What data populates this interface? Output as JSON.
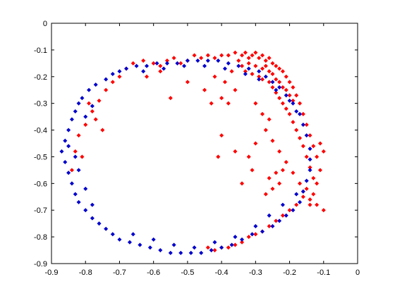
{
  "chart_data": {
    "type": "scatter",
    "title": "",
    "xlabel": "",
    "ylabel": "",
    "xlim": [
      -0.9,
      0
    ],
    "ylim": [
      -0.9,
      0
    ],
    "xticks": [
      "-0.9",
      "-0.8",
      "-0.7",
      "-0.6",
      "-0.5",
      "-0.4",
      "-0.3",
      "-0.2",
      "-0.1",
      "0"
    ],
    "yticks": [
      "0",
      "-0.1",
      "-0.2",
      "-0.3",
      "-0.4",
      "-0.5",
      "-0.6",
      "-0.7",
      "-0.8",
      "-0.9"
    ],
    "grid": false,
    "marker": "diamond",
    "series": [
      {
        "color": "#ff0000",
        "points": [
          [
            -0.66,
            -0.15
          ],
          [
            -0.63,
            -0.14
          ],
          [
            -0.6,
            -0.15
          ],
          [
            -0.58,
            -0.16
          ],
          [
            -0.56,
            -0.14
          ],
          [
            -0.54,
            -0.13
          ],
          [
            -0.52,
            -0.15
          ],
          [
            -0.5,
            -0.14
          ],
          [
            -0.48,
            -0.12
          ],
          [
            -0.46,
            -0.13
          ],
          [
            -0.44,
            -0.12
          ],
          [
            -0.42,
            -0.13
          ],
          [
            -0.4,
            -0.12
          ],
          [
            -0.38,
            -0.12
          ],
          [
            -0.36,
            -0.11
          ],
          [
            -0.34,
            -0.12
          ],
          [
            -0.33,
            -0.11
          ],
          [
            -0.32,
            -0.13
          ],
          [
            -0.31,
            -0.12
          ],
          [
            -0.3,
            -0.11
          ],
          [
            -0.29,
            -0.13
          ],
          [
            -0.28,
            -0.12
          ],
          [
            -0.27,
            -0.14
          ],
          [
            -0.26,
            -0.13
          ],
          [
            -0.25,
            -0.15
          ],
          [
            -0.24,
            -0.16
          ],
          [
            -0.23,
            -0.17
          ],
          [
            -0.22,
            -0.18
          ],
          [
            -0.21,
            -0.2
          ],
          [
            -0.2,
            -0.22
          ],
          [
            -0.19,
            -0.24
          ],
          [
            -0.18,
            -0.27
          ],
          [
            -0.17,
            -0.3
          ],
          [
            -0.16,
            -0.34
          ],
          [
            -0.15,
            -0.38
          ],
          [
            -0.14,
            -0.42
          ],
          [
            -0.13,
            -0.46
          ],
          [
            -0.12,
            -0.5
          ],
          [
            -0.11,
            -0.55
          ],
          [
            -0.12,
            -0.6
          ],
          [
            -0.13,
            -0.64
          ],
          [
            -0.14,
            -0.68
          ],
          [
            -0.35,
            -0.14
          ],
          [
            -0.34,
            -0.16
          ],
          [
            -0.32,
            -0.15
          ],
          [
            -0.3,
            -0.16
          ],
          [
            -0.28,
            -0.17
          ],
          [
            -0.27,
            -0.16
          ],
          [
            -0.26,
            -0.18
          ],
          [
            -0.25,
            -0.19
          ],
          [
            -0.24,
            -0.21
          ],
          [
            -0.23,
            -0.22
          ],
          [
            -0.22,
            -0.24
          ],
          [
            -0.21,
            -0.25
          ],
          [
            -0.2,
            -0.27
          ],
          [
            -0.19,
            -0.29
          ],
          [
            -0.33,
            -0.18
          ],
          [
            -0.31,
            -0.19
          ],
          [
            -0.29,
            -0.2
          ],
          [
            -0.28,
            -0.21
          ],
          [
            -0.26,
            -0.22
          ],
          [
            -0.25,
            -0.24
          ],
          [
            -0.24,
            -0.26
          ],
          [
            -0.23,
            -0.28
          ],
          [
            -0.22,
            -0.3
          ],
          [
            -0.21,
            -0.32
          ],
          [
            -0.2,
            -0.34
          ],
          [
            -0.19,
            -0.37
          ],
          [
            -0.18,
            -0.4
          ],
          [
            -0.17,
            -0.43
          ],
          [
            -0.16,
            -0.46
          ],
          [
            -0.15,
            -0.5
          ],
          [
            -0.14,
            -0.54
          ],
          [
            -0.13,
            -0.58
          ],
          [
            -0.15,
            -0.62
          ],
          [
            -0.16,
            -0.65
          ],
          [
            -0.18,
            -0.68
          ],
          [
            -0.2,
            -0.7
          ],
          [
            -0.22,
            -0.72
          ],
          [
            -0.24,
            -0.74
          ],
          [
            -0.26,
            -0.76
          ],
          [
            -0.28,
            -0.78
          ],
          [
            -0.3,
            -0.79
          ],
          [
            -0.32,
            -0.8
          ],
          [
            -0.34,
            -0.82
          ],
          [
            -0.36,
            -0.83
          ],
          [
            -0.38,
            -0.84
          ],
          [
            -0.4,
            -0.84
          ],
          [
            -0.42,
            -0.85
          ],
          [
            -0.44,
            -0.84
          ],
          [
            -0.23,
            -0.6
          ],
          [
            -0.25,
            -0.62
          ],
          [
            -0.27,
            -0.64
          ],
          [
            -0.26,
            -0.58
          ],
          [
            -0.24,
            -0.56
          ],
          [
            -0.22,
            -0.55
          ],
          [
            -0.45,
            -0.25
          ],
          [
            -0.42,
            -0.2
          ],
          [
            -0.39,
            -0.22
          ],
          [
            -0.37,
            -0.18
          ],
          [
            -0.36,
            -0.25
          ],
          [
            -0.38,
            -0.3
          ],
          [
            -0.4,
            -0.28
          ],
          [
            -0.43,
            -0.3
          ],
          [
            -0.36,
            -0.48
          ],
          [
            -0.4,
            -0.42
          ],
          [
            -0.34,
            -0.6
          ],
          [
            -0.32,
            -0.5
          ],
          [
            -0.3,
            -0.45
          ],
          [
            -0.31,
            -0.55
          ],
          [
            -0.55,
            -0.28
          ],
          [
            -0.5,
            -0.22
          ],
          [
            -0.58,
            -0.18
          ],
          [
            -0.62,
            -0.2
          ],
          [
            -0.68,
            -0.17
          ],
          [
            -0.7,
            -0.2
          ],
          [
            -0.72,
            -0.22
          ],
          [
            -0.74,
            -0.25
          ],
          [
            -0.76,
            -0.29
          ],
          [
            -0.78,
            -0.33
          ],
          [
            -0.8,
            -0.38
          ],
          [
            -0.82,
            -0.42
          ],
          [
            -0.83,
            -0.48
          ],
          [
            -0.84,
            -0.55
          ],
          [
            -0.79,
            -0.3
          ],
          [
            -0.77,
            -0.36
          ],
          [
            -0.75,
            -0.4
          ],
          [
            -0.81,
            -0.5
          ],
          [
            -0.41,
            -0.5
          ],
          [
            -0.3,
            -0.3
          ],
          [
            -0.28,
            -0.34
          ],
          [
            -0.26,
            -0.36
          ],
          [
            -0.27,
            -0.4
          ],
          [
            -0.25,
            -0.44
          ],
          [
            -0.23,
            -0.48
          ],
          [
            -0.21,
            -0.52
          ],
          [
            -0.19,
            -0.56
          ],
          [
            -0.17,
            -0.6
          ],
          [
            -0.16,
            -0.63
          ],
          [
            -0.14,
            -0.66
          ],
          [
            -0.12,
            -0.68
          ],
          [
            -0.1,
            -0.7
          ],
          [
            -0.11,
            -0.45
          ],
          [
            -0.1,
            -0.48
          ]
        ]
      },
      {
        "color": "#0000cc",
        "points": [
          [
            -0.87,
            -0.48
          ],
          [
            -0.86,
            -0.44
          ],
          [
            -0.86,
            -0.52
          ],
          [
            -0.85,
            -0.4
          ],
          [
            -0.85,
            -0.56
          ],
          [
            -0.84,
            -0.36
          ],
          [
            -0.84,
            -0.6
          ],
          [
            -0.83,
            -0.33
          ],
          [
            -0.83,
            -0.64
          ],
          [
            -0.82,
            -0.3
          ],
          [
            -0.82,
            -0.67
          ],
          [
            -0.81,
            -0.28
          ],
          [
            -0.8,
            -0.7
          ],
          [
            -0.79,
            -0.25
          ],
          [
            -0.78,
            -0.73
          ],
          [
            -0.77,
            -0.23
          ],
          [
            -0.76,
            -0.75
          ],
          [
            -0.74,
            -0.21
          ],
          [
            -0.74,
            -0.77
          ],
          [
            -0.72,
            -0.19
          ],
          [
            -0.72,
            -0.79
          ],
          [
            -0.7,
            -0.18
          ],
          [
            -0.7,
            -0.81
          ],
          [
            -0.68,
            -0.17
          ],
          [
            -0.67,
            -0.82
          ],
          [
            -0.65,
            -0.16
          ],
          [
            -0.64,
            -0.83
          ],
          [
            -0.62,
            -0.16
          ],
          [
            -0.61,
            -0.84
          ],
          [
            -0.59,
            -0.15
          ],
          [
            -0.58,
            -0.85
          ],
          [
            -0.56,
            -0.15
          ],
          [
            -0.55,
            -0.86
          ],
          [
            -0.53,
            -0.15
          ],
          [
            -0.52,
            -0.86
          ],
          [
            -0.5,
            -0.14
          ],
          [
            -0.49,
            -0.86
          ],
          [
            -0.47,
            -0.14
          ],
          [
            -0.46,
            -0.86
          ],
          [
            -0.44,
            -0.14
          ],
          [
            -0.43,
            -0.85
          ],
          [
            -0.41,
            -0.14
          ],
          [
            -0.4,
            -0.84
          ],
          [
            -0.38,
            -0.15
          ],
          [
            -0.37,
            -0.83
          ],
          [
            -0.35,
            -0.16
          ],
          [
            -0.34,
            -0.81
          ],
          [
            -0.32,
            -0.17
          ],
          [
            -0.31,
            -0.79
          ],
          [
            -0.29,
            -0.18
          ],
          [
            -0.28,
            -0.78
          ],
          [
            -0.27,
            -0.2
          ],
          [
            -0.25,
            -0.76
          ],
          [
            -0.25,
            -0.22
          ],
          [
            -0.23,
            -0.74
          ],
          [
            -0.23,
            -0.24
          ],
          [
            -0.21,
            -0.72
          ],
          [
            -0.21,
            -0.27
          ],
          [
            -0.19,
            -0.7
          ],
          [
            -0.19,
            -0.3
          ],
          [
            -0.17,
            -0.67
          ],
          [
            -0.17,
            -0.34
          ],
          [
            -0.16,
            -0.63
          ],
          [
            -0.16,
            -0.38
          ],
          [
            -0.15,
            -0.59
          ],
          [
            -0.15,
            -0.42
          ],
          [
            -0.14,
            -0.55
          ],
          [
            -0.14,
            -0.47
          ],
          [
            -0.14,
            -0.51
          ],
          [
            -0.85,
            -0.46
          ],
          [
            -0.83,
            -0.5
          ],
          [
            -0.82,
            -0.55
          ],
          [
            -0.8,
            -0.62
          ],
          [
            -0.78,
            -0.68
          ],
          [
            -0.8,
            -0.35
          ],
          [
            -0.78,
            -0.31
          ],
          [
            -0.66,
            -0.79
          ],
          [
            -0.6,
            -0.81
          ],
          [
            -0.54,
            -0.83
          ],
          [
            -0.48,
            -0.84
          ],
          [
            -0.42,
            -0.82
          ],
          [
            -0.36,
            -0.8
          ],
          [
            -0.3,
            -0.76
          ],
          [
            -0.26,
            -0.72
          ],
          [
            -0.22,
            -0.68
          ],
          [
            -0.18,
            -0.64
          ],
          [
            -0.63,
            -0.18
          ],
          [
            -0.57,
            -0.17
          ],
          [
            -0.51,
            -0.16
          ],
          [
            -0.45,
            -0.16
          ],
          [
            -0.39,
            -0.17
          ],
          [
            -0.33,
            -0.19
          ],
          [
            -0.29,
            -0.21
          ],
          [
            -0.24,
            -0.25
          ],
          [
            -0.2,
            -0.29
          ],
          [
            -0.18,
            -0.33
          ]
        ]
      }
    ]
  }
}
